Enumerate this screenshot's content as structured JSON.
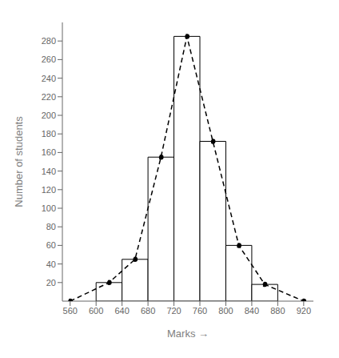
{
  "chart_data": {
    "type": "histogram",
    "xlabel": "Marks  →",
    "ylabel": "Number of students",
    "xlim": [
      548,
      935
    ],
    "ylim": [
      0,
      300
    ],
    "xticks": [
      560,
      600,
      640,
      680,
      720,
      760,
      800,
      840,
      880,
      920
    ],
    "yticks": [
      20,
      40,
      60,
      80,
      100,
      120,
      140,
      160,
      180,
      200,
      220,
      240,
      260,
      280
    ],
    "grid": false,
    "series": [
      {
        "type": "bar",
        "color": "black",
        "bins": [
          600,
          640,
          680,
          720,
          760,
          800,
          840,
          880
        ],
        "values": [
          20,
          45,
          155,
          285,
          172,
          60,
          18
        ]
      },
      {
        "type": "line",
        "color": "black",
        "line_style": "dashed",
        "marker": "dot",
        "x": [
          560,
          620,
          660,
          700,
          740,
          780,
          820,
          860,
          920
        ],
        "values": [
          0,
          20,
          45,
          155,
          285,
          172,
          60,
          18,
          0
        ]
      }
    ]
  }
}
